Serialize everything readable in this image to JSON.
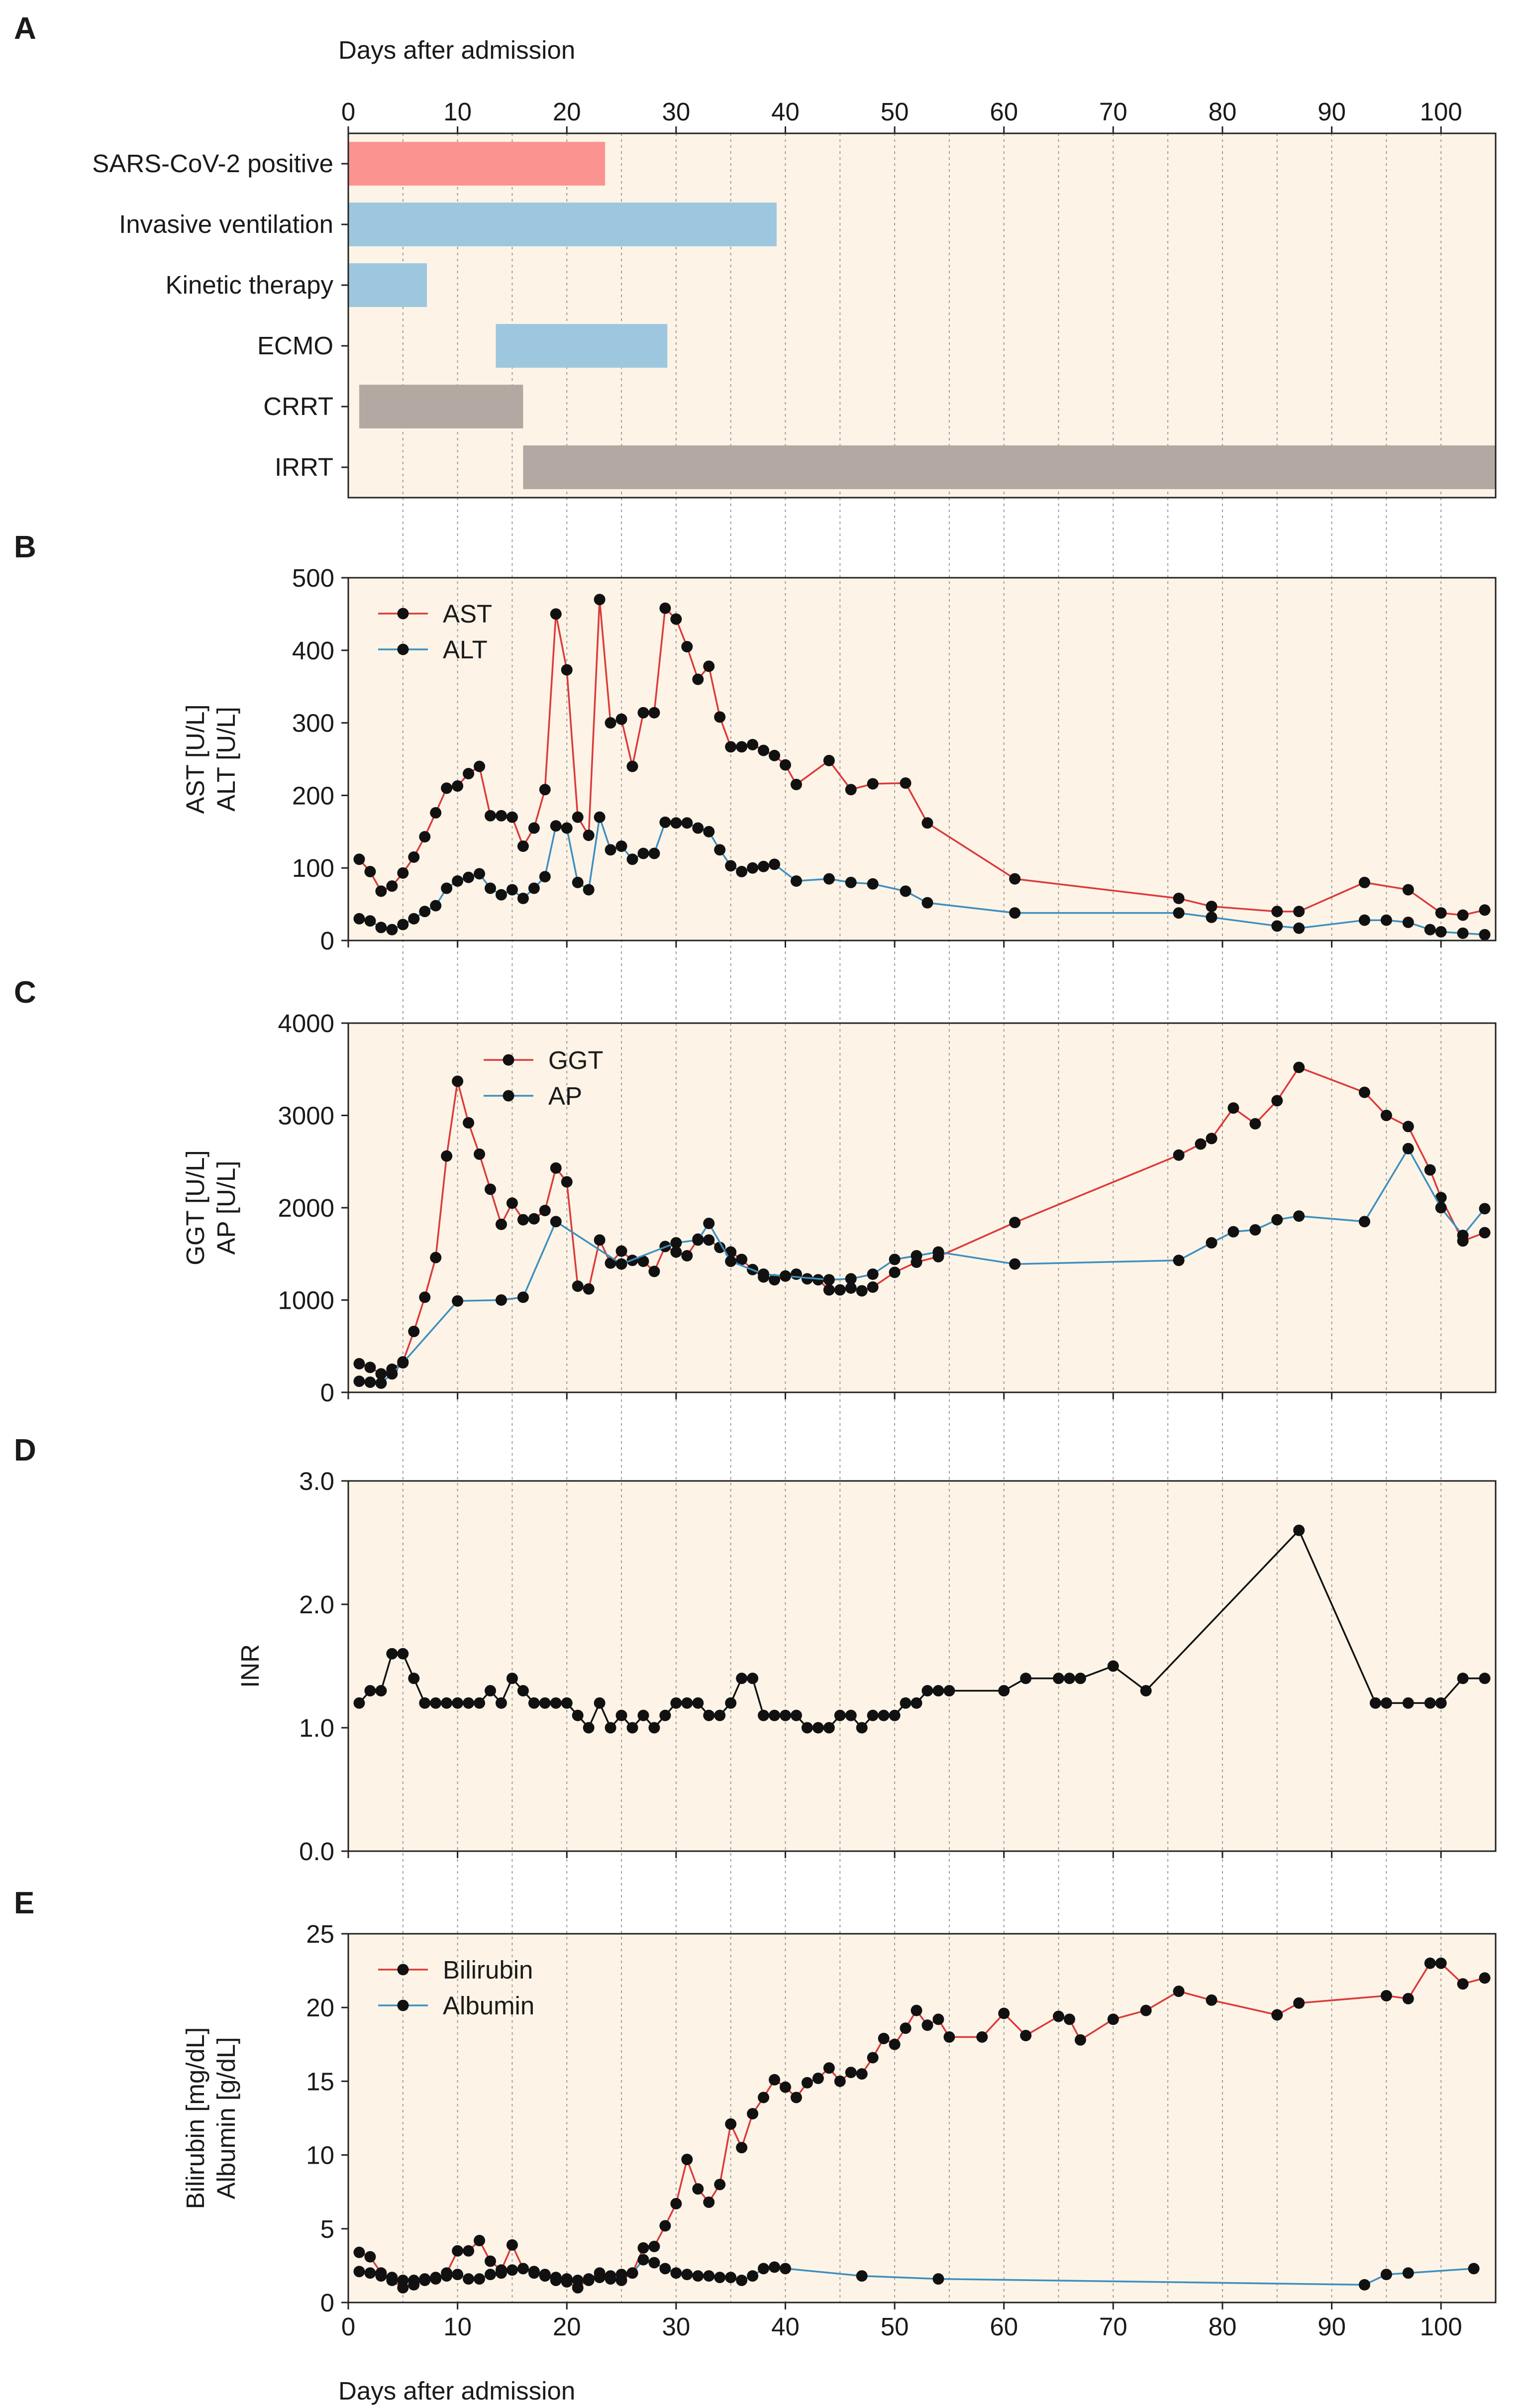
{
  "colors": {
    "panel_bg": "#fdf4e7",
    "red": "#dc3a3a",
    "blue": "#3d8fc0",
    "black": "#111111",
    "bar_red": "#fb9390",
    "bar_blue": "#9dc7de",
    "bar_brown": "#b3a9a2",
    "grid": "#9a9a9a"
  },
  "x_axis": {
    "title_top": "Days after admission",
    "title_bottom": "Days after admission",
    "range": [
      0,
      105
    ],
    "ticks": [
      0,
      10,
      20,
      30,
      40,
      50,
      60,
      70,
      80,
      90,
      100
    ],
    "gridlines": [
      5,
      10,
      15,
      20,
      25,
      30,
      35,
      40,
      45,
      50,
      55,
      60,
      65,
      70,
      75,
      80,
      85,
      90,
      95,
      100
    ]
  },
  "chart_data": [
    {
      "panel": "A",
      "type": "bar",
      "orientation": "horizontal",
      "title": "",
      "xlabel": "Days after admission",
      "xlim": [
        0,
        105
      ],
      "categories": [
        "SARS-CoV-2 positive",
        "Invasive ventilation",
        "Kinetic therapy",
        "ECMO",
        "CRRT",
        "IRRT"
      ],
      "series": [
        {
          "name": "SARS-CoV-2 positive",
          "start": 0,
          "end": 23.5,
          "color": "bar_red"
        },
        {
          "name": "Invasive ventilation",
          "start": 0,
          "end": 39.2,
          "color": "bar_blue"
        },
        {
          "name": "Kinetic therapy",
          "start": 0,
          "end": 7.2,
          "color": "bar_blue"
        },
        {
          "name": "ECMO",
          "start": 13.5,
          "end": 29.2,
          "color": "bar_blue"
        },
        {
          "name": "CRRT",
          "start": 1,
          "end": 16,
          "color": "bar_brown"
        },
        {
          "name": "IRRT",
          "start": 16,
          "end": 105,
          "color": "bar_brown"
        }
      ]
    },
    {
      "panel": "B",
      "type": "line",
      "ylabel_lines": [
        "AST [U/L]",
        "ALT [U/L]"
      ],
      "ylim": [
        0,
        500
      ],
      "yticks": [
        0,
        100,
        200,
        300,
        400,
        500
      ],
      "ytick_labels": [
        "0",
        "100",
        "200",
        "300",
        "400",
        "500"
      ],
      "legend_position": "top-left",
      "series": [
        {
          "name": "AST",
          "color": "red",
          "x": [
            1,
            2,
            3,
            4,
            5,
            6,
            7,
            8,
            9,
            10,
            11,
            12,
            13,
            14,
            15,
            16,
            17,
            18,
            19,
            20,
            21,
            22,
            23,
            24,
            25,
            26,
            27,
            28,
            29,
            30,
            31,
            32,
            33,
            34,
            35,
            36,
            37,
            38,
            39,
            40,
            41,
            44,
            46,
            48,
            51,
            53,
            61,
            76,
            79,
            85,
            87,
            93,
            97,
            100,
            102,
            104
          ],
          "y": [
            112,
            95,
            68,
            75,
            93,
            115,
            143,
            176,
            210,
            213,
            230,
            240,
            172,
            172,
            170,
            130,
            155,
            208,
            450,
            373,
            170,
            145,
            470,
            300,
            305,
            240,
            314,
            314,
            458,
            443,
            405,
            360,
            378,
            308,
            267,
            267,
            270,
            262,
            255,
            242,
            215,
            248,
            208,
            216,
            217,
            162,
            85,
            58,
            47,
            40,
            40,
            80,
            70,
            38,
            35,
            42
          ]
        },
        {
          "name": "ALT",
          "color": "blue",
          "x": [
            1,
            2,
            3,
            4,
            5,
            6,
            7,
            8,
            9,
            10,
            11,
            12,
            13,
            14,
            15,
            16,
            17,
            18,
            19,
            20,
            21,
            22,
            23,
            24,
            25,
            26,
            27,
            28,
            29,
            30,
            31,
            32,
            33,
            34,
            35,
            36,
            37,
            38,
            39,
            41,
            44,
            46,
            48,
            51,
            53,
            61,
            76,
            79,
            85,
            87,
            93,
            95,
            97,
            99,
            100,
            102,
            104
          ],
          "y": [
            30,
            27,
            18,
            15,
            22,
            30,
            40,
            48,
            72,
            82,
            87,
            92,
            72,
            63,
            70,
            58,
            72,
            88,
            158,
            155,
            80,
            70,
            170,
            125,
            130,
            112,
            120,
            120,
            163,
            162,
            162,
            155,
            150,
            125,
            103,
            95,
            100,
            102,
            105,
            82,
            85,
            80,
            78,
            68,
            52,
            38,
            38,
            32,
            20,
            17,
            28,
            28,
            25,
            15,
            12,
            10,
            8
          ]
        }
      ]
    },
    {
      "panel": "C",
      "type": "line",
      "ylabel_lines": [
        "GGT [U/L]",
        "AP [U/L]"
      ],
      "ylim": [
        0,
        4000
      ],
      "yticks": [
        0,
        1000,
        2000,
        3000,
        4000
      ],
      "ytick_labels": [
        "0",
        "1000",
        "2000",
        "3000",
        "4000"
      ],
      "legend_position": "top-left",
      "series": [
        {
          "name": "GGT",
          "color": "red",
          "x": [
            1,
            2,
            3,
            4,
            5,
            6,
            7,
            8,
            9,
            10,
            11,
            12,
            13,
            14,
            15,
            16,
            17,
            18,
            19,
            20,
            21,
            22,
            23,
            24,
            25,
            26,
            27,
            28,
            29,
            30,
            31,
            32,
            33,
            34,
            35,
            36,
            37,
            38,
            39,
            40,
            41,
            42,
            43,
            44,
            45,
            46,
            47,
            48,
            50,
            52,
            54,
            61,
            76,
            78,
            79,
            81,
            83,
            85,
            87,
            93,
            95,
            97,
            99,
            100,
            102,
            104
          ],
          "y": [
            310,
            270,
            200,
            250,
            330,
            660,
            1030,
            1460,
            2560,
            3370,
            2920,
            2580,
            2200,
            1820,
            2050,
            1870,
            1880,
            1970,
            2430,
            2280,
            1150,
            1120,
            1650,
            1400,
            1530,
            1430,
            1420,
            1310,
            1580,
            1520,
            1480,
            1660,
            1650,
            1570,
            1520,
            1440,
            1330,
            1250,
            1220,
            1260,
            1280,
            1230,
            1220,
            1110,
            1110,
            1130,
            1100,
            1140,
            1300,
            1410,
            1470,
            1840,
            2570,
            2690,
            2750,
            3080,
            2910,
            3160,
            3520,
            3250,
            3000,
            2880,
            2410,
            2110,
            1640,
            1730
          ]
        },
        {
          "name": "AP",
          "color": "blue",
          "x": [
            1,
            2,
            3,
            4,
            5,
            10,
            14,
            16,
            19,
            25,
            30,
            32,
            33,
            35,
            38,
            40,
            44,
            46,
            48,
            50,
            52,
            54,
            61,
            76,
            79,
            81,
            83,
            85,
            87,
            93,
            97,
            100,
            102,
            104
          ],
          "y": [
            120,
            110,
            100,
            200,
            320,
            990,
            1000,
            1030,
            1850,
            1390,
            1620,
            1650,
            1830,
            1420,
            1280,
            1260,
            1220,
            1230,
            1280,
            1440,
            1480,
            1520,
            1390,
            1430,
            1620,
            1740,
            1760,
            1870,
            1910,
            1850,
            2640,
            2000,
            1700,
            1990
          ]
        }
      ]
    },
    {
      "panel": "D",
      "type": "line",
      "ylabel_lines": [
        "INR"
      ],
      "ylim": [
        0,
        3
      ],
      "yticks": [
        0,
        1,
        2,
        3
      ],
      "ytick_labels": [
        "0.0",
        "1.0",
        "2.0",
        "3.0"
      ],
      "series": [
        {
          "name": "INR",
          "color": "black",
          "x": [
            1,
            2,
            3,
            4,
            5,
            6,
            7,
            8,
            9,
            10,
            11,
            12,
            13,
            14,
            15,
            16,
            17,
            18,
            19,
            20,
            21,
            22,
            23,
            24,
            25,
            26,
            27,
            28,
            29,
            30,
            31,
            32,
            33,
            34,
            35,
            36,
            37,
            38,
            39,
            40,
            41,
            42,
            43,
            44,
            45,
            46,
            47,
            48,
            49,
            50,
            51,
            52,
            53,
            54,
            55,
            60,
            62,
            65,
            66,
            67,
            70,
            73,
            87,
            94,
            95,
            97,
            99,
            100,
            102,
            104
          ],
          "y": [
            1.2,
            1.3,
            1.3,
            1.6,
            1.6,
            1.4,
            1.2,
            1.2,
            1.2,
            1.2,
            1.2,
            1.2,
            1.3,
            1.2,
            1.4,
            1.3,
            1.2,
            1.2,
            1.2,
            1.2,
            1.1,
            1.0,
            1.2,
            1.0,
            1.1,
            1.0,
            1.1,
            1.0,
            1.1,
            1.2,
            1.2,
            1.2,
            1.1,
            1.1,
            1.2,
            1.4,
            1.4,
            1.1,
            1.1,
            1.1,
            1.1,
            1.0,
            1.0,
            1.0,
            1.1,
            1.1,
            1.0,
            1.1,
            1.1,
            1.1,
            1.2,
            1.2,
            1.3,
            1.3,
            1.3,
            1.3,
            1.4,
            1.4,
            1.4,
            1.4,
            1.5,
            1.3,
            2.6,
            1.2,
            1.2,
            1.2,
            1.2,
            1.2,
            1.4,
            1.4
          ]
        }
      ]
    },
    {
      "panel": "E",
      "type": "line",
      "ylabel_lines": [
        "Bilirubin [mg/dL]",
        "Albumin [g/dL]"
      ],
      "ylim": [
        0,
        25
      ],
      "yticks": [
        0,
        5,
        10,
        15,
        20,
        25
      ],
      "ytick_labels": [
        "0",
        "5",
        "10",
        "15",
        "20",
        "25"
      ],
      "legend_position": "top-left",
      "series": [
        {
          "name": "Bilirubin",
          "color": "red",
          "x": [
            1,
            2,
            3,
            4,
            5,
            6,
            7,
            8,
            9,
            10,
            11,
            12,
            13,
            14,
            15,
            16,
            17,
            18,
            19,
            20,
            21,
            22,
            23,
            24,
            25,
            26,
            27,
            28,
            29,
            30,
            31,
            32,
            33,
            34,
            35,
            36,
            37,
            38,
            39,
            40,
            41,
            42,
            43,
            44,
            45,
            46,
            47,
            48,
            49,
            50,
            51,
            52,
            53,
            54,
            55,
            58,
            60,
            62,
            65,
            66,
            67,
            70,
            73,
            76,
            79,
            85,
            87,
            95,
            97,
            99,
            100,
            102,
            104
          ],
          "y": [
            3.4,
            3.1,
            2.0,
            1.5,
            1.0,
            1.2,
            1.5,
            1.6,
            2.0,
            3.5,
            3.5,
            4.2,
            2.8,
            2.2,
            3.9,
            2.3,
            2.0,
            1.8,
            1.5,
            1.4,
            1.0,
            1.6,
            2.0,
            1.8,
            1.5,
            2.0,
            3.7,
            3.8,
            5.2,
            6.7,
            9.7,
            7.7,
            6.8,
            8.0,
            12.1,
            10.5,
            12.8,
            13.9,
            15.1,
            14.6,
            13.9,
            14.9,
            15.2,
            15.9,
            15.0,
            15.6,
            15.5,
            16.6,
            17.9,
            17.5,
            18.6,
            19.8,
            18.8,
            19.2,
            18.0,
            18.0,
            19.6,
            18.1,
            19.4,
            19.2,
            17.8,
            19.2,
            19.8,
            21.1,
            20.5,
            19.5,
            20.3,
            20.8,
            20.6,
            23.0,
            23.0,
            21.6,
            22.0
          ]
        },
        {
          "name": "Albumin",
          "color": "blue",
          "x": [
            1,
            2,
            3,
            4,
            5,
            6,
            7,
            8,
            9,
            10,
            11,
            12,
            13,
            14,
            15,
            16,
            17,
            18,
            19,
            20,
            21,
            22,
            23,
            24,
            25,
            26,
            27,
            28,
            29,
            30,
            31,
            32,
            33,
            34,
            35,
            36,
            37,
            38,
            39,
            40,
            47,
            54,
            93,
            95,
            97,
            103
          ],
          "y": [
            2.1,
            2.0,
            1.8,
            1.7,
            1.5,
            1.5,
            1.6,
            1.7,
            1.8,
            1.9,
            1.6,
            1.6,
            1.9,
            2.0,
            2.2,
            2.3,
            2.1,
            1.9,
            1.7,
            1.6,
            1.5,
            1.5,
            1.7,
            1.6,
            1.9,
            2.0,
            2.9,
            2.7,
            2.3,
            2.0,
            1.9,
            1.8,
            1.8,
            1.7,
            1.7,
            1.5,
            1.8,
            2.3,
            2.4,
            2.3,
            1.8,
            1.6,
            1.2,
            1.9,
            2.0,
            2.3
          ]
        }
      ]
    }
  ]
}
